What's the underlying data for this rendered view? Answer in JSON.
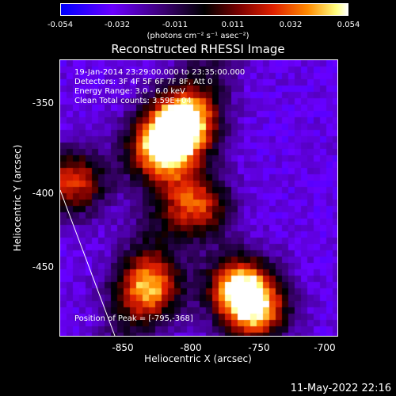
{
  "colorbar": {
    "ticks": [
      "-0.054",
      "-0.032",
      "-0.011",
      "0.011",
      "0.032",
      "0.054"
    ],
    "label": "(photons cm⁻² s⁻¹ asec⁻²)"
  },
  "title": "Reconstructed RHESSI Image",
  "info": {
    "time": "19-Jan-2014 23:29:00.000 to 23:35:00.000",
    "detectors": "Detectors: 3F 4F 5F 6F 7F 8F, Att 0",
    "energy": "Energy Range: 3.0 - 6.0 keV",
    "clean": "Clean     Total counts: 3.59E+04"
  },
  "peak_label": "Position of Peak = [-795,-368]",
  "footer_date": "11-May-2022 22:16",
  "chart_data": {
    "type": "heatmap",
    "title": "Reconstructed RHESSI Image",
    "xlabel": "Heliocentric X (arcsec)",
    "ylabel": "Heliocentric Y (arcsec)",
    "xlim": [
      -870,
      -700
    ],
    "ylim": [
      -500,
      -330
    ],
    "xticks": [
      "-850",
      "-800",
      "-750",
      "-700"
    ],
    "yticks": [
      "-350",
      "-400",
      "-450"
    ],
    "colorbar_range": [
      -0.054,
      0.054
    ],
    "peak_position": [
      -795,
      -368
    ],
    "sources": [
      {
        "x": -795,
        "y": -368,
        "value": 0.054
      },
      {
        "x": -810,
        "y": -385,
        "value": 0.04
      },
      {
        "x": -760,
        "y": -470,
        "value": 0.045
      },
      {
        "x": -750,
        "y": -485,
        "value": 0.035
      },
      {
        "x": -785,
        "y": -420,
        "value": 0.025
      },
      {
        "x": -815,
        "y": -470,
        "value": 0.03
      },
      {
        "x": -862,
        "y": -405,
        "value": 0.03
      }
    ]
  }
}
